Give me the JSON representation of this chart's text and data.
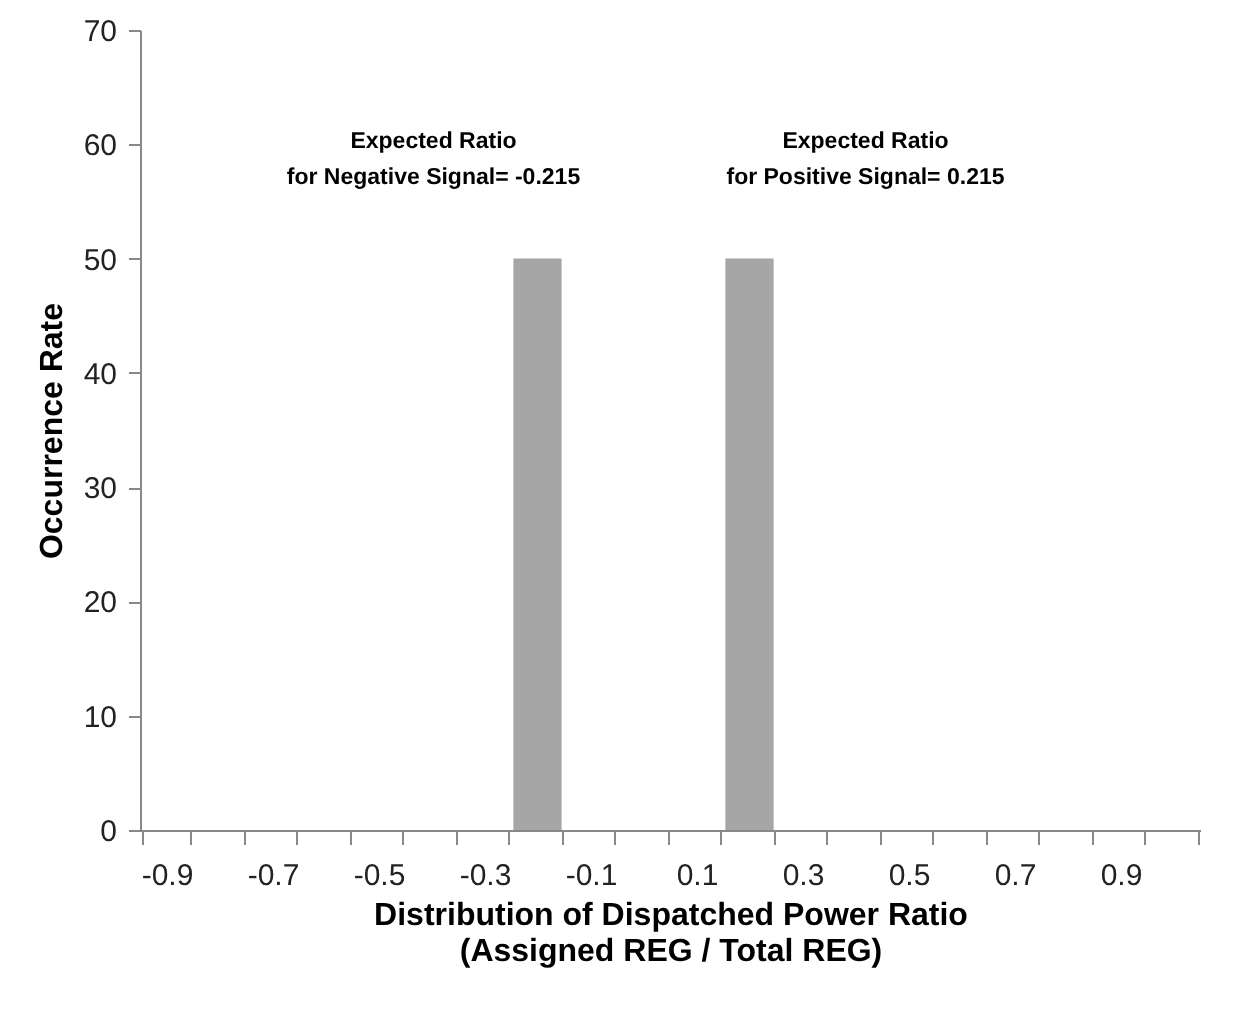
{
  "chart_data": {
    "type": "bar",
    "xlabel": "Distribution of Dispatched Power Ratio\n(Assigned REG / Total REG)",
    "ylabel": "Occurrence Rate",
    "categories": [
      "-0.9",
      null,
      "-0.7",
      null,
      "-0.5",
      null,
      "-0.3",
      null,
      "-0.1",
      null,
      "0.1",
      null,
      "0.3",
      null,
      "0.5",
      null,
      "0.7",
      null,
      "0.9",
      null
    ],
    "values": [
      0,
      0,
      0,
      0,
      0,
      0,
      0,
      50,
      0,
      0,
      0,
      50,
      0,
      0,
      0,
      0,
      0,
      0,
      0,
      0
    ],
    "color": "#a6a6a6",
    "ylim": [
      0,
      70
    ],
    "yticks": [
      0,
      10,
      20,
      30,
      40,
      50,
      60,
      70
    ],
    "annotations": [
      "Expected Ratio\nfor Negative Signal= -0.215",
      "Expected Ratio\nfor Positive Signal= 0.215"
    ],
    "grid": false
  }
}
